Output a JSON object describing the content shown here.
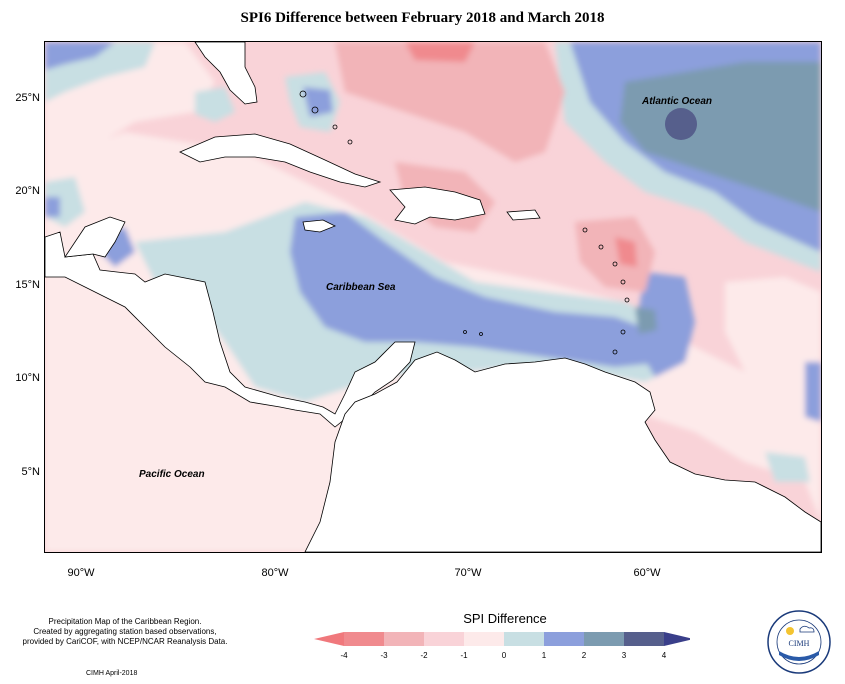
{
  "title": "SPI6 Difference between February 2018 and March 2018",
  "map": {
    "extent": {
      "lon": [
        -92,
        -52
      ],
      "lat": [
        1.5,
        28.5
      ]
    },
    "labels": {
      "atlantic": "Atlantic Ocean",
      "caribbean": "Caribbean Sea",
      "pacific": "Pacific Ocean"
    },
    "lat_ticks": [
      {
        "value": 25,
        "label": "25°N"
      },
      {
        "value": 20,
        "label": "20°N"
      },
      {
        "value": 15,
        "label": "15°N"
      },
      {
        "value": 10,
        "label": "10°N"
      },
      {
        "value": 5,
        "label": "5°N"
      }
    ],
    "lon_ticks": [
      {
        "value": -90,
        "label": "90°W"
      },
      {
        "value": -80,
        "label": "80°W"
      },
      {
        "value": -70,
        "label": "70°W"
      },
      {
        "value": -60,
        "label": "60°W"
      }
    ]
  },
  "footer": {
    "line1": "Precipitation Map of the Caribbean Region.",
    "line2": "Created by aggregating station based observations,",
    "line3": "provided by CariCOF, with NCEP/NCAR Reanalysis Data.",
    "credit": "CIMH April-2018"
  },
  "legend": {
    "title": "SPI Difference",
    "ticks": [
      "-4",
      "-3",
      "-2",
      "-1",
      "0",
      "1",
      "2",
      "3",
      "4"
    ],
    "colors": [
      "#f08a8e",
      "#f2b4b8",
      "#f9d3d8",
      "#fdeaea",
      "#c8dfe3",
      "#8c9fdc",
      "#7c9bb0",
      "#565f8c"
    ],
    "low_arrow_color": "#f0787c",
    "high_arrow_color": "#3a3f8a"
  },
  "logo": {
    "text": "CIMH"
  }
}
